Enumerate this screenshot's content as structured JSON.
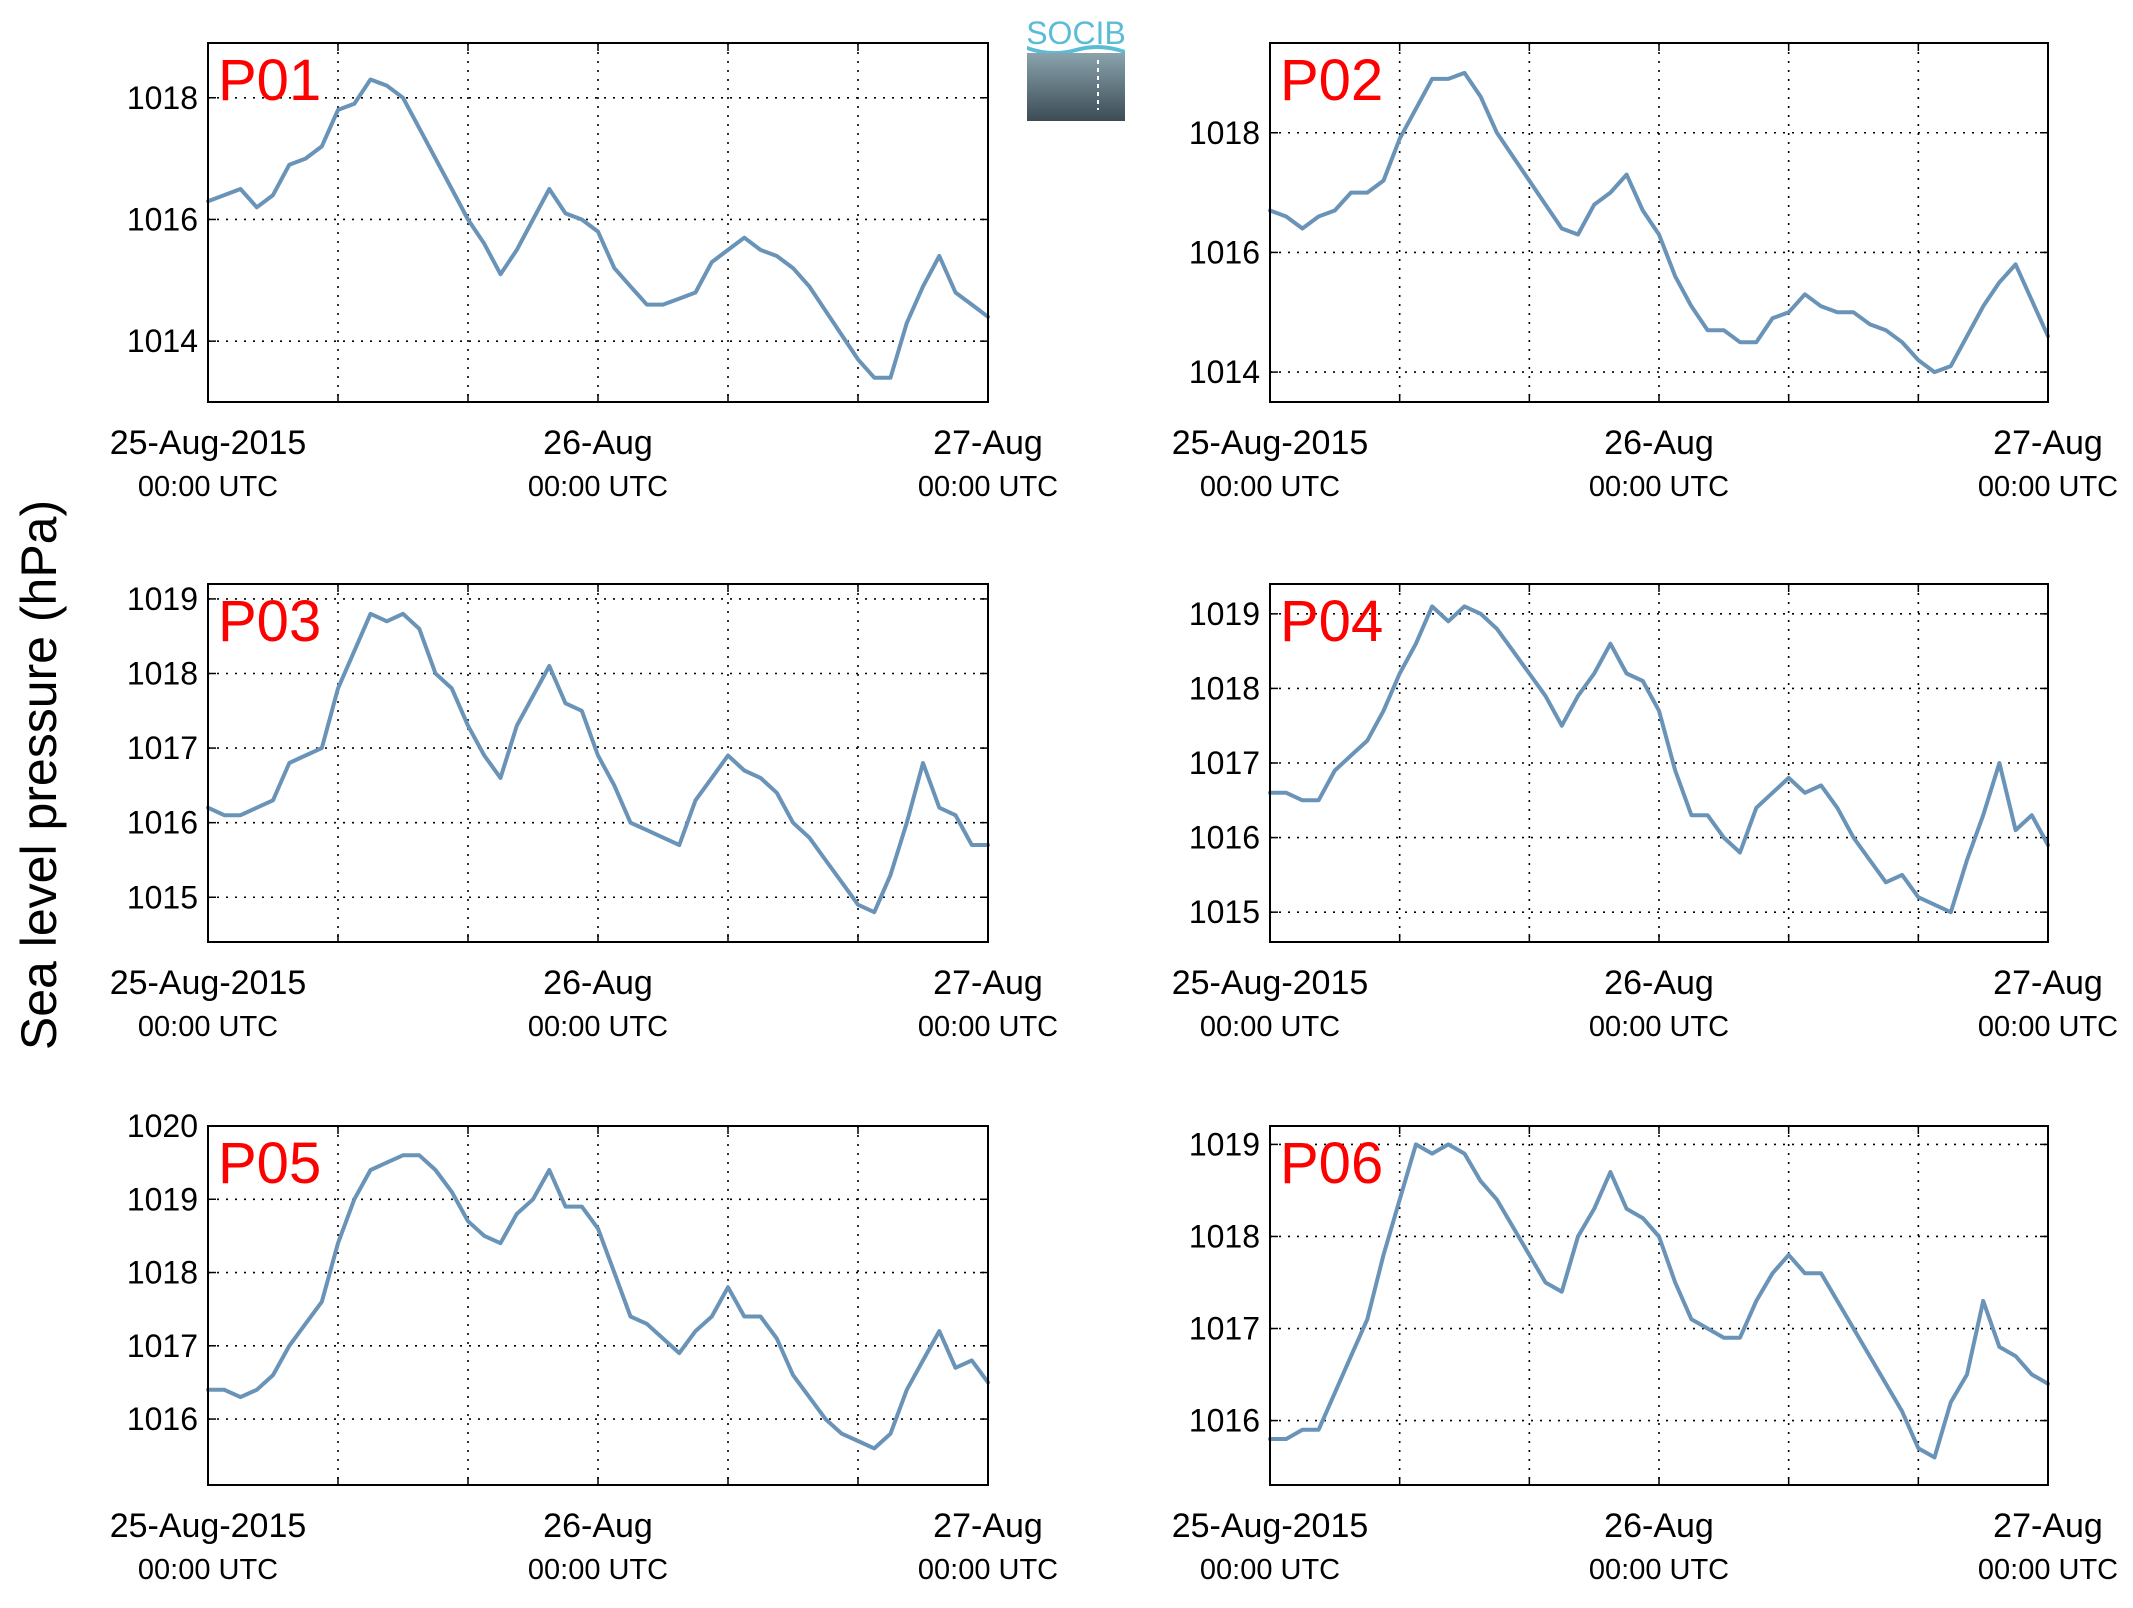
{
  "logo": {
    "text": "SOCIB",
    "colors": {
      "text": "#5bbcd6",
      "top": "#8aa3ad",
      "bottom": "#3b4c55"
    }
  },
  "y_label": "Sea level pressure (hPa)",
  "x_tick_labels": [
    {
      "line1": "25-Aug-2015",
      "line2": "00:00 UTC",
      "x": 0
    },
    {
      "line1": "26-Aug",
      "line2": "00:00 UTC",
      "x": 24
    },
    {
      "line1": "27-Aug",
      "line2": "00:00 UTC",
      "x": 48
    }
  ],
  "style": {
    "line_color": "#6a93b8",
    "label_color": "#ff0000",
    "grid": "dotted"
  },
  "chart_data": [
    {
      "type": "line",
      "label": "P01",
      "xlim": [
        0,
        48
      ],
      "ylim": [
        1013,
        1018.9
      ],
      "yticks": [
        1014,
        1016,
        1018
      ],
      "x": [
        0,
        1,
        2,
        3,
        4,
        5,
        6,
        7,
        8,
        9,
        10,
        11,
        12,
        13,
        14,
        15,
        16,
        17,
        18,
        19,
        20,
        21,
        22,
        23,
        24,
        25,
        26,
        27,
        28,
        29,
        30,
        31,
        32,
        33,
        34,
        35,
        36,
        37,
        38,
        39,
        40,
        41,
        42,
        43,
        44,
        45,
        46,
        47,
        48
      ],
      "values": [
        1016.3,
        1016.4,
        1016.5,
        1016.2,
        1016.4,
        1016.9,
        1017.0,
        1017.2,
        1017.8,
        1017.9,
        1018.3,
        1018.2,
        1018.0,
        1017.5,
        1017.0,
        1016.5,
        1016.0,
        1015.6,
        1015.1,
        1015.5,
        1016.0,
        1016.5,
        1016.1,
        1016.0,
        1015.8,
        1015.2,
        1014.9,
        1014.6,
        1014.6,
        1014.7,
        1014.8,
        1015.3,
        1015.5,
        1015.7,
        1015.5,
        1015.4,
        1015.2,
        1014.9,
        1014.5,
        1014.1,
        1013.7,
        1013.4,
        1013.4,
        1014.3,
        1014.9,
        1015.4,
        1014.8,
        1014.6,
        1014.4
      ]
    },
    {
      "type": "line",
      "label": "P02",
      "xlim": [
        0,
        48
      ],
      "ylim": [
        1013.5,
        1019.5
      ],
      "yticks": [
        1014,
        1016,
        1018
      ],
      "x": [
        0,
        1,
        2,
        3,
        4,
        5,
        6,
        7,
        8,
        9,
        10,
        11,
        12,
        13,
        14,
        15,
        16,
        17,
        18,
        19,
        20,
        21,
        22,
        23,
        24,
        25,
        26,
        27,
        28,
        29,
        30,
        31,
        32,
        33,
        34,
        35,
        36,
        37,
        38,
        39,
        40,
        41,
        42,
        43,
        44,
        45,
        46,
        47,
        48
      ],
      "values": [
        1016.7,
        1016.6,
        1016.4,
        1016.6,
        1016.7,
        1017.0,
        1017.0,
        1017.2,
        1017.9,
        1018.4,
        1018.9,
        1018.9,
        1019.0,
        1018.6,
        1018.0,
        1017.6,
        1017.2,
        1016.8,
        1016.4,
        1016.3,
        1016.8,
        1017.0,
        1017.3,
        1016.7,
        1016.3,
        1015.6,
        1015.1,
        1014.7,
        1014.7,
        1014.5,
        1014.5,
        1014.9,
        1015.0,
        1015.3,
        1015.1,
        1015.0,
        1015.0,
        1014.8,
        1014.7,
        1014.5,
        1014.2,
        1014.0,
        1014.1,
        1014.6,
        1015.1,
        1015.5,
        1015.8,
        1015.2,
        1014.6
      ]
    },
    {
      "type": "line",
      "label": "P03",
      "xlim": [
        0,
        48
      ],
      "ylim": [
        1014.4,
        1019.2
      ],
      "yticks": [
        1015,
        1016,
        1017,
        1018,
        1019
      ],
      "x": [
        0,
        1,
        2,
        3,
        4,
        5,
        6,
        7,
        8,
        9,
        10,
        11,
        12,
        13,
        14,
        15,
        16,
        17,
        18,
        19,
        20,
        21,
        22,
        23,
        24,
        25,
        26,
        27,
        28,
        29,
        30,
        31,
        32,
        33,
        34,
        35,
        36,
        37,
        38,
        39,
        40,
        41,
        42,
        43,
        44,
        45,
        46,
        47,
        48
      ],
      "values": [
        1016.2,
        1016.1,
        1016.1,
        1016.2,
        1016.3,
        1016.8,
        1016.9,
        1017.0,
        1017.8,
        1018.3,
        1018.8,
        1018.7,
        1018.8,
        1018.6,
        1018.0,
        1017.8,
        1017.3,
        1016.9,
        1016.6,
        1017.3,
        1017.7,
        1018.1,
        1017.6,
        1017.5,
        1016.9,
        1016.5,
        1016.0,
        1015.9,
        1015.8,
        1015.7,
        1016.3,
        1016.6,
        1016.9,
        1016.7,
        1016.6,
        1016.4,
        1016.0,
        1015.8,
        1015.5,
        1015.2,
        1014.9,
        1014.8,
        1015.3,
        1016.0,
        1016.8,
        1016.2,
        1016.1,
        1015.7,
        1015.7
      ]
    },
    {
      "type": "line",
      "label": "P04",
      "xlim": [
        0,
        48
      ],
      "ylim": [
        1014.6,
        1019.4
      ],
      "yticks": [
        1015,
        1016,
        1017,
        1018,
        1019
      ],
      "x": [
        0,
        1,
        2,
        3,
        4,
        5,
        6,
        7,
        8,
        9,
        10,
        11,
        12,
        13,
        14,
        15,
        16,
        17,
        18,
        19,
        20,
        21,
        22,
        23,
        24,
        25,
        26,
        27,
        28,
        29,
        30,
        31,
        32,
        33,
        34,
        35,
        36,
        37,
        38,
        39,
        40,
        41,
        42,
        43,
        44,
        45,
        46,
        47,
        48
      ],
      "values": [
        1016.6,
        1016.6,
        1016.5,
        1016.5,
        1016.9,
        1017.1,
        1017.3,
        1017.7,
        1018.2,
        1018.6,
        1019.1,
        1018.9,
        1019.1,
        1019.0,
        1018.8,
        1018.5,
        1018.2,
        1017.9,
        1017.5,
        1017.9,
        1018.2,
        1018.6,
        1018.2,
        1018.1,
        1017.7,
        1016.9,
        1016.3,
        1016.3,
        1016.0,
        1015.8,
        1016.4,
        1016.6,
        1016.8,
        1016.6,
        1016.7,
        1016.4,
        1016.0,
        1015.7,
        1015.4,
        1015.5,
        1015.2,
        1015.1,
        1015.0,
        1015.7,
        1016.3,
        1017.0,
        1016.1,
        1016.3,
        1015.9
      ]
    },
    {
      "type": "line",
      "label": "P05",
      "xlim": [
        0,
        48
      ],
      "ylim": [
        1015.1,
        1020.0
      ],
      "yticks": [
        1016,
        1017,
        1018,
        1019,
        1020
      ],
      "x": [
        0,
        1,
        2,
        3,
        4,
        5,
        6,
        7,
        8,
        9,
        10,
        11,
        12,
        13,
        14,
        15,
        16,
        17,
        18,
        19,
        20,
        21,
        22,
        23,
        24,
        25,
        26,
        27,
        28,
        29,
        30,
        31,
        32,
        33,
        34,
        35,
        36,
        37,
        38,
        39,
        40,
        41,
        42,
        43,
        44,
        45,
        46,
        47,
        48
      ],
      "values": [
        1016.4,
        1016.4,
        1016.3,
        1016.4,
        1016.6,
        1017.0,
        1017.3,
        1017.6,
        1018.4,
        1019.0,
        1019.4,
        1019.5,
        1019.6,
        1019.6,
        1019.4,
        1019.1,
        1018.7,
        1018.5,
        1018.4,
        1018.8,
        1019.0,
        1019.4,
        1018.9,
        1018.9,
        1018.6,
        1018.0,
        1017.4,
        1017.3,
        1017.1,
        1016.9,
        1017.2,
        1017.4,
        1017.8,
        1017.4,
        1017.4,
        1017.1,
        1016.6,
        1016.3,
        1016.0,
        1015.8,
        1015.7,
        1015.6,
        1015.8,
        1016.4,
        1016.8,
        1017.2,
        1016.7,
        1016.8,
        1016.5
      ]
    },
    {
      "type": "line",
      "label": "P06",
      "xlim": [
        0,
        48
      ],
      "ylim": [
        1015.3,
        1019.2
      ],
      "yticks": [
        1016,
        1017,
        1018,
        1019
      ],
      "x": [
        0,
        1,
        2,
        3,
        4,
        5,
        6,
        7,
        8,
        9,
        10,
        11,
        12,
        13,
        14,
        15,
        16,
        17,
        18,
        19,
        20,
        21,
        22,
        23,
        24,
        25,
        26,
        27,
        28,
        29,
        30,
        31,
        32,
        33,
        34,
        35,
        36,
        37,
        38,
        39,
        40,
        41,
        42,
        43,
        44,
        45,
        46,
        47,
        48
      ],
      "values": [
        1015.8,
        1015.8,
        1015.9,
        1015.9,
        1016.3,
        1016.7,
        1017.1,
        1017.8,
        1018.4,
        1019.0,
        1018.9,
        1019.0,
        1018.9,
        1018.6,
        1018.4,
        1018.1,
        1017.8,
        1017.5,
        1017.4,
        1018.0,
        1018.3,
        1018.7,
        1018.3,
        1018.2,
        1018.0,
        1017.5,
        1017.1,
        1017.0,
        1016.9,
        1016.9,
        1017.3,
        1017.6,
        1017.8,
        1017.6,
        1017.6,
        1017.3,
        1017.0,
        1016.7,
        1016.4,
        1016.1,
        1015.7,
        1015.6,
        1016.2,
        1016.5,
        1017.3,
        1016.8,
        1016.7,
        1016.5,
        1016.4
      ]
    }
  ]
}
